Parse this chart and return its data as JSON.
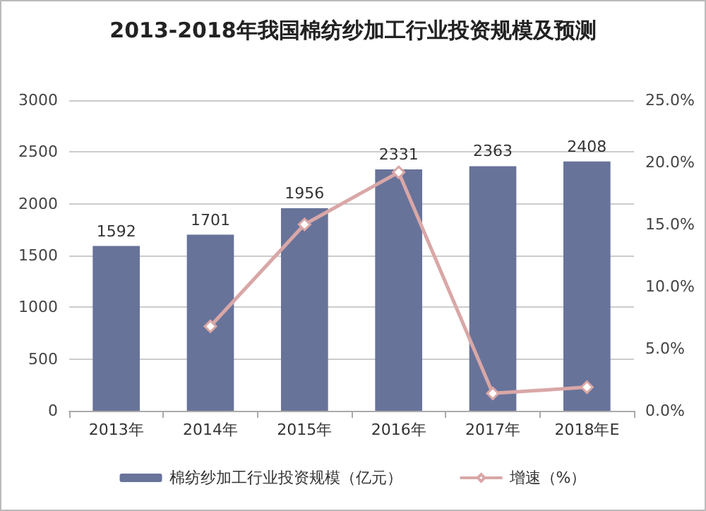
{
  "chart_data": {
    "type": "bar",
    "title": "2013-2018年我国棉纺纱加工行业投资规模及预测",
    "categories": [
      "2013年",
      "2014年",
      "2015年",
      "2016年",
      "2017年",
      "2018年E"
    ],
    "series": [
      {
        "name": "棉纺纱加工行业投资规模（亿元）",
        "color": "#68739a",
        "values": [
          1592,
          1701,
          1956,
          2331,
          2363,
          2408
        ],
        "value_labels": [
          "1592",
          "1701",
          "1956",
          "2331",
          "2363",
          "2408"
        ]
      },
      {
        "name": "增速（%）",
        "type": "line",
        "axis": "y2",
        "color": "#d9a7a7",
        "marker": "diamond",
        "values": [
          null,
          6.8,
          15.0,
          19.2,
          1.4,
          1.9
        ]
      }
    ],
    "ylim": [
      0,
      3000
    ],
    "yticks": [
      0,
      500,
      1000,
      1500,
      2000,
      2500,
      3000
    ],
    "y2lim": [
      0,
      25
    ],
    "y2ticks": [
      {
        "value": 0,
        "label": "0.0%"
      },
      {
        "value": 5,
        "label": "5.0%"
      },
      {
        "value": 10,
        "label": "10.0%"
      },
      {
        "value": 15,
        "label": "15.0%"
      },
      {
        "value": 20,
        "label": "20.0%"
      },
      {
        "value": 25,
        "label": "25.0%"
      }
    ],
    "grid": "y",
    "legend": "bottom"
  }
}
